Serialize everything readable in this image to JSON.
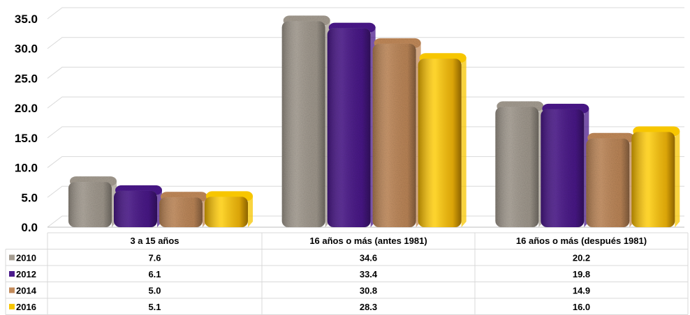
{
  "chart_data": {
    "type": "bar",
    "categories": [
      "3 a 15 años",
      "16 años o más (antes 1981)",
      "16 años o más (después 1981)"
    ],
    "series": [
      {
        "name": "2010",
        "values": [
          7.6,
          34.6,
          20.2
        ],
        "display": [
          "7.6",
          "34.6",
          "20.2"
        ],
        "color": "#a59d92"
      },
      {
        "name": "2012",
        "values": [
          6.1,
          33.4,
          19.8
        ],
        "display": [
          "6.1",
          "33.4",
          "19.8"
        ],
        "color": "#4b1a8c"
      },
      {
        "name": "2014",
        "values": [
          5.0,
          30.8,
          14.9
        ],
        "display": [
          "5.0",
          "30.8",
          "14.9"
        ],
        "color": "#c28a5a"
      },
      {
        "name": "2016",
        "values": [
          5.1,
          28.3,
          16.0
        ],
        "display": [
          "5.1",
          "28.3",
          "16.0"
        ],
        "color": "#f7c600"
      }
    ],
    "ylim": [
      0,
      35
    ],
    "yticks": [
      "0.0",
      "5.0",
      "10.0",
      "15.0",
      "20.0",
      "25.0",
      "30.0",
      "35.0"
    ],
    "grid": true,
    "legend": "data-table",
    "title": "",
    "xlabel": "",
    "ylabel": ""
  }
}
